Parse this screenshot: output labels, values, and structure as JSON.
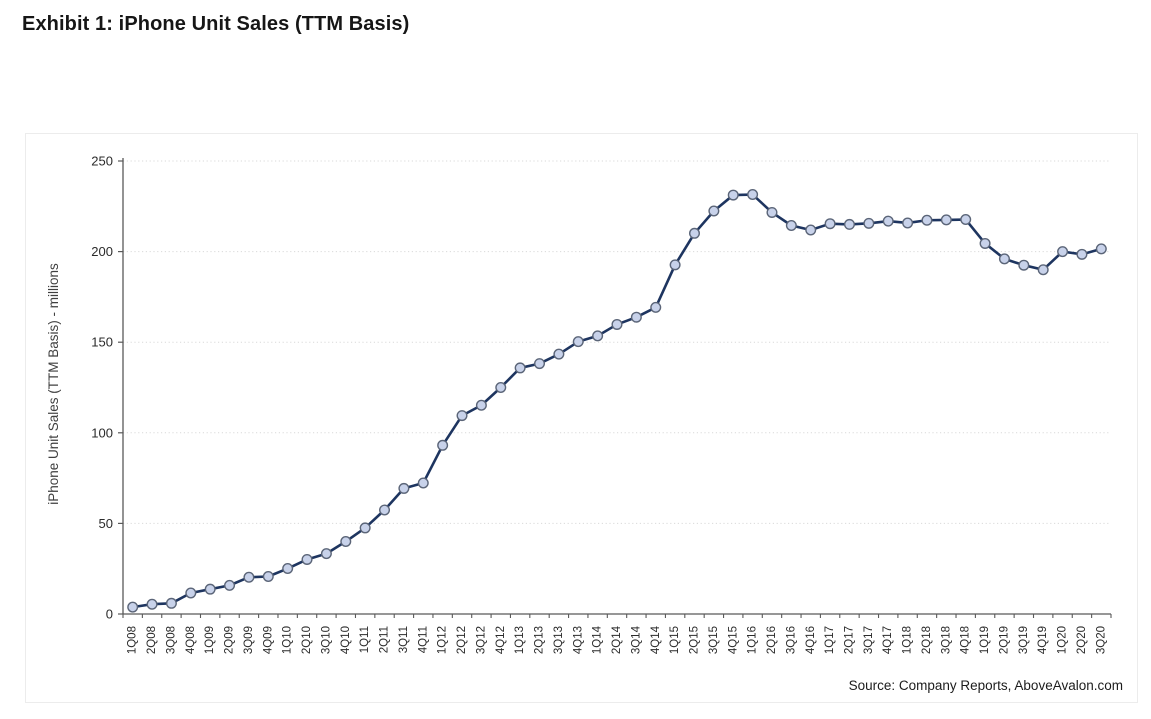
{
  "page": {
    "title": "Exhibit 1: iPhone Unit Sales (TTM Basis)",
    "source": "Source: Company Reports, AboveAvalon.com"
  },
  "chart_data": {
    "type": "line",
    "title": "Exhibit 1: iPhone Unit Sales (TTM Basis)",
    "xlabel": "",
    "ylabel": "iPhone Unit Sales (TTM Basis) - millions",
    "ylim": [
      0,
      250
    ],
    "yticks": [
      0,
      50,
      100,
      150,
      200,
      250
    ],
    "grid": "horizontal-dotted",
    "legend_position": "none",
    "categories": [
      "1Q08",
      "2Q08",
      "3Q08",
      "4Q08",
      "1Q09",
      "2Q09",
      "3Q09",
      "4Q09",
      "1Q10",
      "2Q10",
      "3Q10",
      "4Q10",
      "1Q11",
      "2Q11",
      "3Q11",
      "4Q11",
      "1Q12",
      "2Q12",
      "3Q12",
      "4Q12",
      "1Q13",
      "2Q13",
      "3Q13",
      "4Q13",
      "1Q14",
      "2Q14",
      "3Q14",
      "4Q14",
      "1Q15",
      "2Q15",
      "3Q15",
      "4Q15",
      "1Q16",
      "2Q16",
      "3Q16",
      "4Q16",
      "1Q17",
      "2Q17",
      "3Q17",
      "4Q17",
      "1Q18",
      "2Q18",
      "3Q18",
      "4Q18",
      "1Q19",
      "2Q19",
      "3Q19",
      "4Q19",
      "1Q20",
      "2Q20",
      "3Q20"
    ],
    "series": [
      {
        "name": "iPhone Unit Sales (TTM Basis) - millions",
        "values": [
          3.8,
          5.4,
          5.9,
          11.6,
          13.7,
          15.8,
          20.3,
          20.7,
          25.1,
          30.1,
          33.3,
          40,
          47.5,
          57.4,
          69.3,
          72.3,
          93.1,
          109.5,
          115.2,
          125,
          135.8,
          138.2,
          143.4,
          150.3,
          153.5,
          159.8,
          163.8,
          169.2,
          192.7,
          210.1,
          222.4,
          231.2,
          231.5,
          221.6,
          214.4,
          211.9,
          215.4,
          215,
          215.6,
          216.8,
          215.8,
          217.3,
          217.5,
          217.7,
          204.5,
          196,
          192.5,
          190,
          200,
          198.5,
          201.5
        ]
      }
    ],
    "colors": {
      "line": "#1e3560",
      "marker_fill": "#c8d2ea",
      "marker_stroke": "#5b6578",
      "axis": "#595959",
      "gridline": "#d9d9d9",
      "tick_label": "#2b2b2b",
      "card_border": "#ececec",
      "background": "#ffffff"
    }
  }
}
